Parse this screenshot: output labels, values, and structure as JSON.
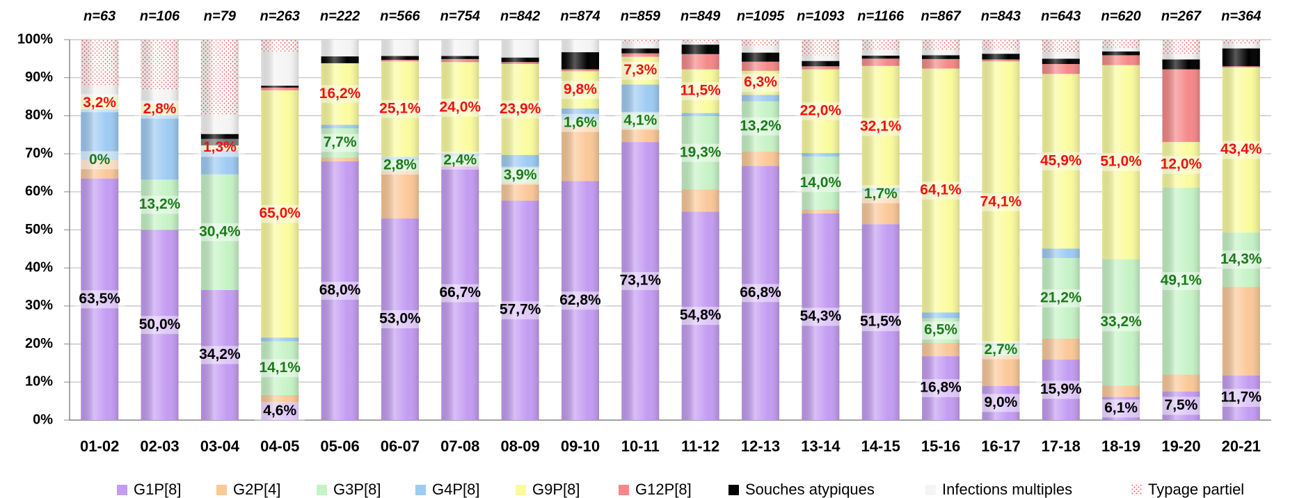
{
  "chart_data": {
    "type": "stacked_bar",
    "categories": [
      "01-02",
      "02-03",
      "03-04",
      "04-05",
      "05-06",
      "06-07",
      "07-08",
      "08-09",
      "09-10",
      "10-11",
      "11-12",
      "12-13",
      "13-14",
      "14-15",
      "15-16",
      "16-17",
      "17-18",
      "18-19",
      "19-20",
      "20-21"
    ],
    "n_labels": [
      "n=63",
      "n=106",
      "n=79",
      "n=263",
      "n=222",
      "n=566",
      "n=754",
      "n=842",
      "n=874",
      "n=859",
      "n=849",
      "n=1095",
      "n=1093",
      "n=1166",
      "n=867",
      "n=843",
      "n=643",
      "n=620",
      "n=267",
      "n=364"
    ],
    "ylim": [
      0,
      100
    ],
    "yticks": [
      {
        "value": 0,
        "label": "0%"
      },
      {
        "value": 10,
        "label": "10%"
      },
      {
        "value": 20,
        "label": "20%"
      },
      {
        "value": 30,
        "label": "30%"
      },
      {
        "value": 40,
        "label": "40%"
      },
      {
        "value": 50,
        "label": "50%"
      },
      {
        "value": 60,
        "label": "60%"
      },
      {
        "value": 70,
        "label": "70%"
      },
      {
        "value": 80,
        "label": "80%"
      },
      {
        "value": 90,
        "label": "90%"
      },
      {
        "value": 100,
        "label": "100%"
      }
    ],
    "grid": true,
    "legend": "bottom",
    "series": [
      {
        "name": "G1P[8]",
        "color": "#c49cf2",
        "label_color": "#000000",
        "values": [
          63.5,
          50.0,
          34.2,
          4.6,
          68.0,
          53.0,
          66.7,
          57.7,
          62.8,
          73.1,
          54.8,
          66.8,
          54.3,
          51.5,
          16.8,
          9.0,
          15.9,
          6.1,
          7.5,
          11.7
        ],
        "value_labels": [
          "63,5%",
          "50,0%",
          "34,2%",
          "4,6%",
          "68,0%",
          "53,0%",
          "66,7%",
          "57,7%",
          "62,8%",
          "73,1%",
          "54,8%",
          "66,8%",
          "54,3%",
          "51,5%",
          "16,8%",
          "9,0%",
          "15,9%",
          "6,1%",
          "7,5%",
          "11,7%"
        ]
      },
      {
        "name": "G2P[4]",
        "color": "#fbc898",
        "values": [
          4.8,
          0,
          0,
          2.0,
          1.0,
          12.5,
          0.3,
          4.6,
          14.5,
          3.5,
          5.8,
          3.8,
          1.0,
          7.0,
          3.5,
          8.0,
          5.5,
          3.0,
          4.5,
          23.3
        ]
      },
      {
        "name": "G3P[8]",
        "color": "#c6f3c6",
        "label_color": "#1b7a1b",
        "values": [
          0,
          13.2,
          30.4,
          14.1,
          7.7,
          2.8,
          2.4,
          3.9,
          1.6,
          4.1,
          19.3,
          13.2,
          14.0,
          1.7,
          6.5,
          2.7,
          21.2,
          33.2,
          49.1,
          14.3
        ],
        "value_labels": [
          "0%",
          "13,2%",
          "30,4%",
          "14,1%",
          "7,7%",
          "2,8%",
          "2,4%",
          "3,9%",
          "1,6%",
          "4,1%",
          "19,3%",
          "13,2%",
          "14,0%",
          "1,7%",
          "6,5%",
          "2,7%",
          "21,2%",
          "33,2%",
          "49,1%",
          "14,3%"
        ]
      },
      {
        "name": "G4P[8]",
        "color": "#9ecbf3",
        "values": [
          13.4,
          17.0,
          6.3,
          1.0,
          0.9,
          0.9,
          0.7,
          3.5,
          3.0,
          7.5,
          0.8,
          1.7,
          0.9,
          0.8,
          1.5,
          0.5,
          2.5,
          0,
          0,
          0
        ]
      },
      {
        "name": "G9P[8]",
        "color": "#fbfb9e",
        "label_color": "#ee1111",
        "values": [
          3.2,
          2.8,
          1.3,
          65.0,
          16.2,
          25.1,
          24.0,
          23.9,
          9.8,
          7.3,
          11.5,
          6.3,
          22.0,
          32.1,
          64.1,
          74.1,
          45.9,
          51.0,
          12.0,
          43.4
        ],
        "value_labels": [
          "3,2%",
          "2,8%",
          "1,3%",
          "65,0%",
          "16,2%",
          "25,1%",
          "24,0%",
          "23,9%",
          "9,8%",
          "7,3%",
          "11,5%",
          "6,3%",
          "22,0%",
          "32,1%",
          "64,1%",
          "74,1%",
          "45,9%",
          "51,0%",
          "12,0%",
          "43,4%"
        ]
      },
      {
        "name": "G12P[8]",
        "color": "#f58888",
        "values": [
          0,
          0,
          0,
          0.7,
          0,
          0.4,
          0.8,
          0.5,
          0.5,
          0.9,
          4.0,
          2.4,
          0.8,
          1.9,
          2.5,
          0.5,
          2.6,
          2.6,
          19.1,
          0.3
        ]
      },
      {
        "name": "Souches atypiques",
        "color": "#000000",
        "values": [
          0,
          0,
          3.0,
          0.5,
          1.8,
          1.0,
          0.8,
          1.2,
          4.5,
          1.3,
          2.5,
          2.4,
          1.4,
          0.8,
          1.0,
          1.5,
          1.4,
          1.0,
          2.6,
          4.7
        ]
      },
      {
        "name": "Infections multiples",
        "color": "#f4f4f4",
        "values": [
          3.2,
          3.8,
          5.2,
          9.0,
          4.4,
          4.3,
          4.3,
          4.7,
          3.3,
          1.5,
          0.5,
          1.6,
          1.5,
          1.6,
          1.5,
          1.2,
          1.5,
          1.0,
          1.5,
          1.2
        ]
      },
      {
        "name": "Typage partiel",
        "color": "#f25a5a",
        "pattern": "dotted",
        "values": [
          11.9,
          13.2,
          19.6,
          3.0,
          0,
          0,
          0,
          0,
          0,
          0.8,
          0.8,
          1.8,
          4.1,
          2.6,
          2.6,
          2.5,
          3.5,
          2.1,
          3.7,
          1.1
        ]
      }
    ]
  }
}
